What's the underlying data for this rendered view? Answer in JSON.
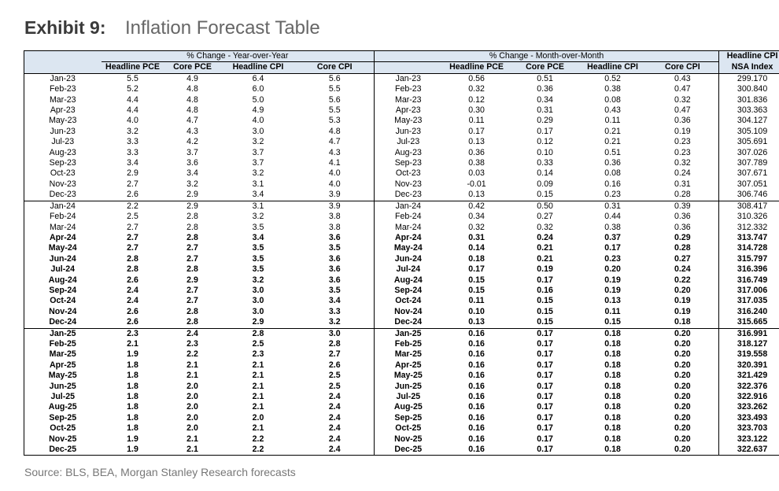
{
  "header": {
    "exhibit": "Exhibit 9:",
    "title": "Inflation Forecast Table"
  },
  "table": {
    "groups": [
      "% Change - Year-over-Year",
      "% Change - Month-over-Month"
    ],
    "nsa_header": [
      "Headline CPI",
      "NSA Index"
    ],
    "columns_yoy": [
      "Headline PCE",
      "Core PCE",
      "Headline CPI",
      "Core CPI"
    ],
    "columns_mom": [
      "Headline PCE",
      "Core PCE",
      "Headline CPI",
      "Core CPI"
    ],
    "rows": [
      [
        "Jan-23",
        "5.5",
        "4.9",
        "6.4",
        "5.6",
        "Jan-23",
        "0.56",
        "0.51",
        "0.52",
        "0.43",
        "299.170"
      ],
      [
        "Feb-23",
        "5.2",
        "4.8",
        "6.0",
        "5.5",
        "Feb-23",
        "0.32",
        "0.36",
        "0.38",
        "0.47",
        "300.840"
      ],
      [
        "Mar-23",
        "4.4",
        "4.8",
        "5.0",
        "5.6",
        "Mar-23",
        "0.12",
        "0.34",
        "0.08",
        "0.32",
        "301.836"
      ],
      [
        "Apr-23",
        "4.4",
        "4.8",
        "4.9",
        "5.5",
        "Apr-23",
        "0.30",
        "0.31",
        "0.43",
        "0.47",
        "303.363"
      ],
      [
        "May-23",
        "4.0",
        "4.7",
        "4.0",
        "5.3",
        "May-23",
        "0.11",
        "0.29",
        "0.11",
        "0.36",
        "304.127"
      ],
      [
        "Jun-23",
        "3.2",
        "4.3",
        "3.0",
        "4.8",
        "Jun-23",
        "0.17",
        "0.17",
        "0.21",
        "0.19",
        "305.109"
      ],
      [
        "Jul-23",
        "3.3",
        "4.2",
        "3.2",
        "4.7",
        "Jul-23",
        "0.13",
        "0.12",
        "0.21",
        "0.23",
        "305.691"
      ],
      [
        "Aug-23",
        "3.3",
        "3.7",
        "3.7",
        "4.3",
        "Aug-23",
        "0.36",
        "0.10",
        "0.51",
        "0.23",
        "307.026"
      ],
      [
        "Sep-23",
        "3.4",
        "3.6",
        "3.7",
        "4.1",
        "Sep-23",
        "0.38",
        "0.33",
        "0.36",
        "0.32",
        "307.789"
      ],
      [
        "Oct-23",
        "2.9",
        "3.4",
        "3.2",
        "4.0",
        "Oct-23",
        "0.03",
        "0.14",
        "0.08",
        "0.24",
        "307.671"
      ],
      [
        "Nov-23",
        "2.7",
        "3.2",
        "3.1",
        "4.0",
        "Nov-23",
        "-0.01",
        "0.09",
        "0.16",
        "0.31",
        "307.051"
      ],
      [
        "Dec-23",
        "2.6",
        "2.9",
        "3.4",
        "3.9",
        "Dec-23",
        "0.13",
        "0.15",
        "0.23",
        "0.28",
        "306.746"
      ],
      [
        "Jan-24",
        "2.2",
        "2.9",
        "3.1",
        "3.9",
        "Jan-24",
        "0.42",
        "0.50",
        "0.31",
        "0.39",
        "308.417"
      ],
      [
        "Feb-24",
        "2.5",
        "2.8",
        "3.2",
        "3.8",
        "Feb-24",
        "0.34",
        "0.27",
        "0.44",
        "0.36",
        "310.326"
      ],
      [
        "Mar-24",
        "2.7",
        "2.8",
        "3.5",
        "3.8",
        "Mar-24",
        "0.32",
        "0.32",
        "0.38",
        "0.36",
        "312.332"
      ],
      [
        "Apr-24",
        "2.7",
        "2.8",
        "3.4",
        "3.6",
        "Apr-24",
        "0.31",
        "0.24",
        "0.37",
        "0.29",
        "313.747"
      ],
      [
        "May-24",
        "2.7",
        "2.7",
        "3.5",
        "3.5",
        "May-24",
        "0.14",
        "0.21",
        "0.17",
        "0.28",
        "314.728"
      ],
      [
        "Jun-24",
        "2.8",
        "2.7",
        "3.5",
        "3.6",
        "Jun-24",
        "0.18",
        "0.21",
        "0.23",
        "0.27",
        "315.797"
      ],
      [
        "Jul-24",
        "2.8",
        "2.8",
        "3.5",
        "3.6",
        "Jul-24",
        "0.17",
        "0.19",
        "0.20",
        "0.24",
        "316.396"
      ],
      [
        "Aug-24",
        "2.6",
        "2.9",
        "3.2",
        "3.6",
        "Aug-24",
        "0.15",
        "0.17",
        "0.19",
        "0.22",
        "316.749"
      ],
      [
        "Sep-24",
        "2.4",
        "2.7",
        "3.0",
        "3.5",
        "Sep-24",
        "0.15",
        "0.16",
        "0.19",
        "0.20",
        "317.006"
      ],
      [
        "Oct-24",
        "2.4",
        "2.7",
        "3.0",
        "3.4",
        "Oct-24",
        "0.11",
        "0.15",
        "0.13",
        "0.19",
        "317.035"
      ],
      [
        "Nov-24",
        "2.6",
        "2.8",
        "3.0",
        "3.3",
        "Nov-24",
        "0.10",
        "0.15",
        "0.11",
        "0.19",
        "316.240"
      ],
      [
        "Dec-24",
        "2.6",
        "2.8",
        "2.9",
        "3.2",
        "Dec-24",
        "0.13",
        "0.15",
        "0.15",
        "0.18",
        "315.665"
      ],
      [
        "Jan-25",
        "2.3",
        "2.4",
        "2.8",
        "3.0",
        "Jan-25",
        "0.16",
        "0.17",
        "0.18",
        "0.20",
        "316.991"
      ],
      [
        "Feb-25",
        "2.1",
        "2.3",
        "2.5",
        "2.8",
        "Feb-25",
        "0.16",
        "0.17",
        "0.18",
        "0.20",
        "318.127"
      ],
      [
        "Mar-25",
        "1.9",
        "2.2",
        "2.3",
        "2.7",
        "Mar-25",
        "0.16",
        "0.17",
        "0.18",
        "0.20",
        "319.558"
      ],
      [
        "Apr-25",
        "1.8",
        "2.1",
        "2.1",
        "2.6",
        "Apr-25",
        "0.16",
        "0.17",
        "0.18",
        "0.20",
        "320.391"
      ],
      [
        "May-25",
        "1.8",
        "2.1",
        "2.1",
        "2.5",
        "May-25",
        "0.16",
        "0.17",
        "0.18",
        "0.20",
        "321.429"
      ],
      [
        "Jun-25",
        "1.8",
        "2.0",
        "2.1",
        "2.5",
        "Jun-25",
        "0.16",
        "0.17",
        "0.18",
        "0.20",
        "322.376"
      ],
      [
        "Jul-25",
        "1.8",
        "2.0",
        "2.1",
        "2.4",
        "Jul-25",
        "0.16",
        "0.17",
        "0.18",
        "0.20",
        "322.916"
      ],
      [
        "Aug-25",
        "1.8",
        "2.0",
        "2.1",
        "2.4",
        "Aug-25",
        "0.16",
        "0.17",
        "0.18",
        "0.20",
        "323.262"
      ],
      [
        "Sep-25",
        "1.8",
        "2.0",
        "2.0",
        "2.4",
        "Sep-25",
        "0.16",
        "0.17",
        "0.18",
        "0.20",
        "323.493"
      ],
      [
        "Oct-25",
        "1.8",
        "2.0",
        "2.1",
        "2.4",
        "Oct-25",
        "0.16",
        "0.17",
        "0.18",
        "0.20",
        "323.703"
      ],
      [
        "Nov-25",
        "1.9",
        "2.1",
        "2.2",
        "2.4",
        "Nov-25",
        "0.16",
        "0.17",
        "0.18",
        "0.20",
        "323.122"
      ],
      [
        "Dec-25",
        "1.9",
        "2.1",
        "2.2",
        "2.4",
        "Dec-25",
        "0.16",
        "0.17",
        "0.18",
        "0.20",
        "322.637"
      ]
    ]
  },
  "footer": {
    "source": "Source: BLS, BEA, Morgan Stanley Research forecasts"
  }
}
